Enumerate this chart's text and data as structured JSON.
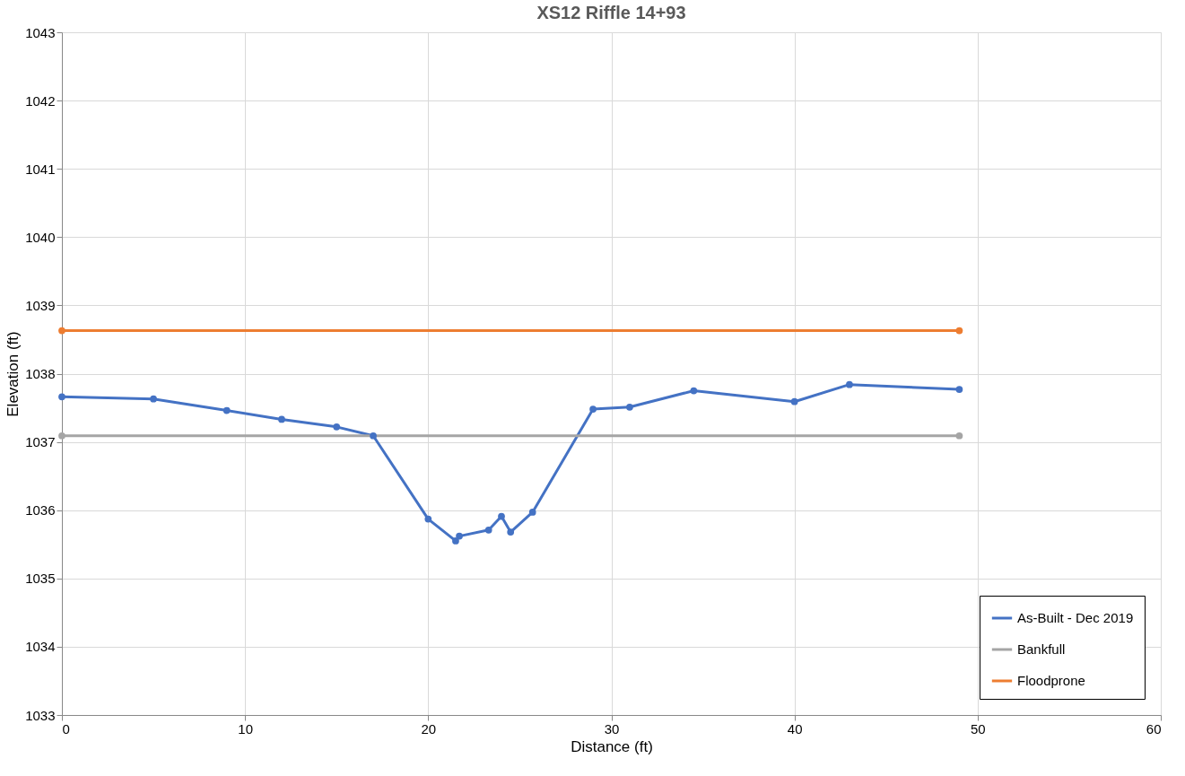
{
  "chart_data": {
    "type": "line",
    "title": "XS12 Riffle 14+93",
    "xlabel": "Distance (ft)",
    "ylabel": "Elevation (ft)",
    "xlim": [
      0,
      60
    ],
    "xticks": [
      0,
      10,
      20,
      30,
      40,
      50,
      60
    ],
    "ylim": [
      1033,
      1043
    ],
    "yticks": [
      1033,
      1034,
      1035,
      1036,
      1037,
      1038,
      1039,
      1040,
      1041,
      1042,
      1043
    ],
    "grid": true,
    "legend": "bottom right",
    "marker": "circle",
    "line_style": "solid",
    "series": [
      {
        "name": "As-Built - Dec 2019",
        "color": "#4472c4",
        "x": [
          0,
          5,
          9,
          12,
          15,
          17,
          20,
          21.5,
          21.7,
          23.3,
          24,
          24.5,
          25.7,
          29,
          31,
          34.5,
          40,
          43,
          49
        ],
        "values": [
          1037.66,
          1037.63,
          1037.46,
          1037.33,
          1037.22,
          1037.09,
          1035.87,
          1035.55,
          1035.62,
          1035.71,
          1035.91,
          1035.68,
          1035.97,
          1037.48,
          1037.51,
          1037.75,
          1037.59,
          1037.84,
          1037.77
        ]
      },
      {
        "name": "Bankfull",
        "color": "#a5a5a5",
        "x": [
          0,
          49
        ],
        "values": [
          1037.09,
          1037.09
        ]
      },
      {
        "name": "Floodprone",
        "color": "#ed7d31",
        "x": [
          0,
          49
        ],
        "values": [
          1038.63,
          1038.63
        ]
      }
    ]
  }
}
